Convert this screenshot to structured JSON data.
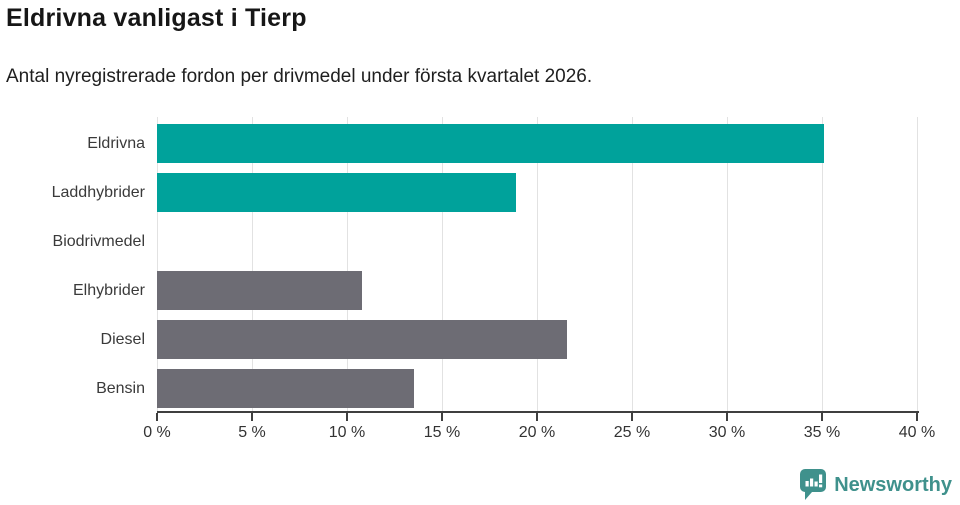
{
  "header": {
    "title": "Eldrivna vanligast i Tierp",
    "subtitle": "Antal nyregistrerade fordon per drivmedel under första kvartalet 2026."
  },
  "chart_data": {
    "type": "bar",
    "orientation": "horizontal",
    "title": "Eldrivna vanligast i Tierp",
    "subtitle": "Antal nyregistrerade fordon per drivmedel under första kvartalet 2026.",
    "categories": [
      "Eldrivna",
      "Laddhybrider",
      "Biodrivmedel",
      "Elhybrider",
      "Diesel",
      "Bensin"
    ],
    "values": [
      35.1,
      18.9,
      0,
      10.8,
      21.6,
      13.5
    ],
    "unit": "%",
    "bar_colors": [
      "#00a29b",
      "#00a29b",
      "#6d6c74",
      "#6d6c74",
      "#6d6c74",
      "#6d6c74"
    ],
    "xlabel": "",
    "ylabel": "",
    "xlim": [
      0,
      40
    ],
    "x_ticks": [
      0,
      5,
      10,
      15,
      20,
      25,
      30,
      35,
      40
    ],
    "x_tick_labels": [
      "0 %",
      "5 %",
      "10 %",
      "15 %",
      "20 %",
      "25 %",
      "30 %",
      "35 %",
      "40 %"
    ],
    "grid": "vertical-only",
    "legend": "none"
  },
  "colors": {
    "teal": "#00a29b",
    "gray": "#6d6c74",
    "gridline": "#e2e2e2",
    "axis": "#3f3f3f",
    "label_text": "#3a3a3a",
    "title_text": "#161616",
    "brand_teal": "#3f918c"
  },
  "footer": {
    "brand": "Newsworthy"
  }
}
